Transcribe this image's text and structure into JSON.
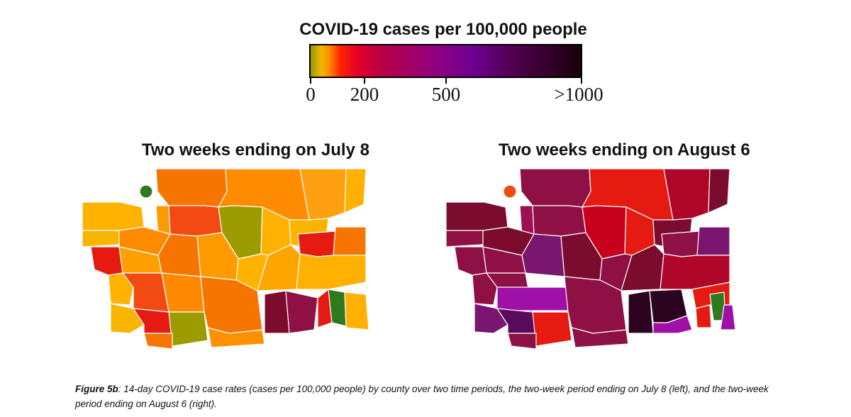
{
  "legend": {
    "title": "COVID-19 cases per 100,000 people",
    "ticks": [
      "0",
      "200",
      "500",
      ">1000"
    ]
  },
  "maps": [
    {
      "title": "Two weeks ending on July 8"
    },
    {
      "title": "Two weeks ending on August 6"
    }
  ],
  "caption": {
    "label": "Figure 5b",
    "text": ": 14-day COVID-19 case rates (cases per 100,000 people) by county over two time periods, the two-week period ending on July 8 (left), and the two-week period ending on August 6 (right)."
  },
  "colors": {
    "olive": "#9c9c00",
    "yellow_orange": "#f9b400",
    "orange": "#ff9100",
    "dark_orange": "#f57500",
    "red_orange": "#f24a12",
    "red": "#e51a10",
    "crimson": "#b0062a",
    "maroon": "#7b0c2e",
    "wine": "#8e1044",
    "plum": "#7a1670",
    "purple": "#9e10a6",
    "dark_purple": "#2c0420",
    "green": "#2f7a1e"
  }
}
